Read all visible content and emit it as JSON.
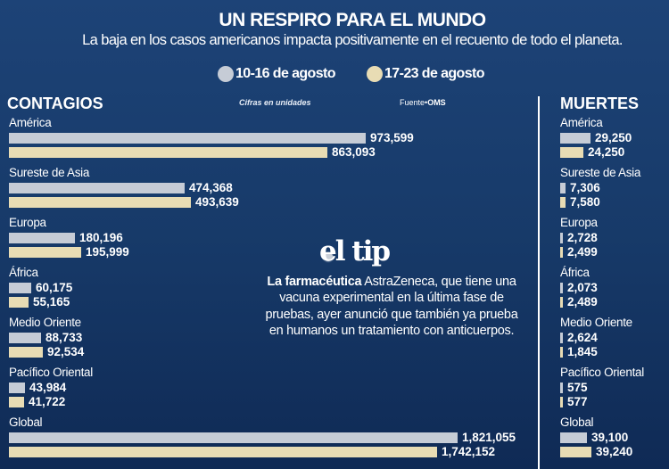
{
  "header": {
    "title": "UN RESPIRO PARA EL MUNDO",
    "subtitle": "La baja en los casos americanos impacta positivamente en el recuento de todo el planeta."
  },
  "chart_data": [
    {
      "type": "bar",
      "title": "CONTAGIOS",
      "note": "Cifras en unidades",
      "source_label": "Fuente",
      "source": "OMS",
      "categories": [
        "América",
        "Sureste de Asia",
        "Europa",
        "África",
        "Medio Oriente",
        "Pacífico Oriental",
        "Global"
      ],
      "series": [
        {
          "name": "10-16 de agosto",
          "color": "#c6ccd6",
          "values": [
            973599,
            474368,
            180196,
            60175,
            88733,
            43984,
            1821055
          ],
          "labels": [
            "973,599",
            "474,368",
            "180,196",
            "60,175",
            "88,733",
            "43,984",
            "1,821,055"
          ]
        },
        {
          "name": "17-23 de agosto",
          "color": "#e8dcb4",
          "values": [
            863093,
            493639,
            195999,
            55165,
            92534,
            41722,
            1742152
          ],
          "labels": [
            "863,093",
            "493,639",
            "195,999",
            "55,165",
            "92,534",
            "41,722",
            "1,742,152"
          ]
        }
      ]
    },
    {
      "type": "bar",
      "title": "MUERTES",
      "categories": [
        "América",
        "Sureste de Asia",
        "Europa",
        "África",
        "Medio Oriente",
        "Pacífico Oriental",
        "Global"
      ],
      "series": [
        {
          "name": "10-16 de agosto",
          "color": "#c6ccd6",
          "values": [
            29250,
            7306,
            2728,
            2073,
            2624,
            575,
            39100
          ],
          "labels": [
            "29,250",
            "7,306",
            "2,728",
            "2,073",
            "2,624",
            "575",
            "39,100"
          ]
        },
        {
          "name": "17-23 de agosto",
          "color": "#e8dcb4",
          "values": [
            24250,
            7580,
            2499,
            2489,
            1845,
            577,
            39240
          ],
          "labels": [
            "24,250",
            "7,580",
            "2,499",
            "2,489",
            "1,845",
            "577",
            "39,240"
          ]
        }
      ]
    }
  ],
  "tip": {
    "logo": "el tip",
    "bold": "La farmacéutica",
    "text": " AstraZeneca, que tiene una vacuna experimental en la última fase de pruebas, ayer anunció que también ya prueba en humanos un tratamiento con anticuerpos."
  }
}
